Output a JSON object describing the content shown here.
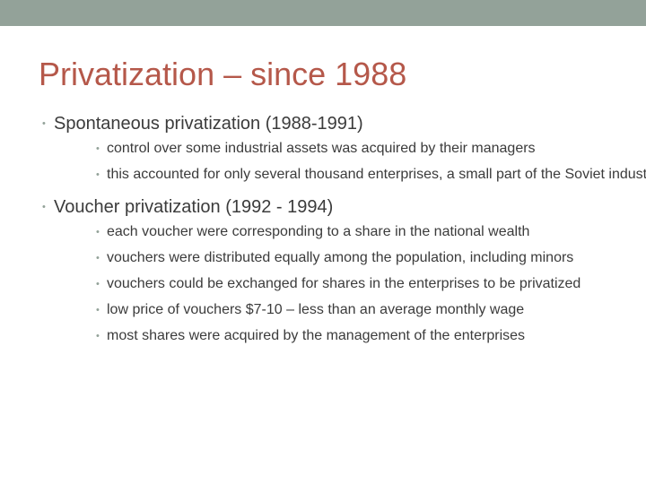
{
  "slide": {
    "title": "Privatization – since 1988",
    "accent_color": "#b5584a",
    "band_color": "#93a299"
  },
  "content": {
    "sections": [
      {
        "heading": "Spontaneous privatization (1988-1991)",
        "items": [
          "control over some industrial assets was acquired by their managers",
          "this accounted for only several thousand enterprises, a small part of the Soviet industry"
        ]
      },
      {
        "heading": "Voucher privatization (1992 - 1994)",
        "items": [
          "each voucher were corresponding to a share in the national wealth",
          "vouchers were distributed equally among the population, including minors",
          "vouchers could be exchanged for shares in the enterprises to be privatized",
          "low price of vouchers $7-10 – less than an average monthly wage",
          "most shares were acquired by the management of the enterprises"
        ]
      }
    ]
  }
}
